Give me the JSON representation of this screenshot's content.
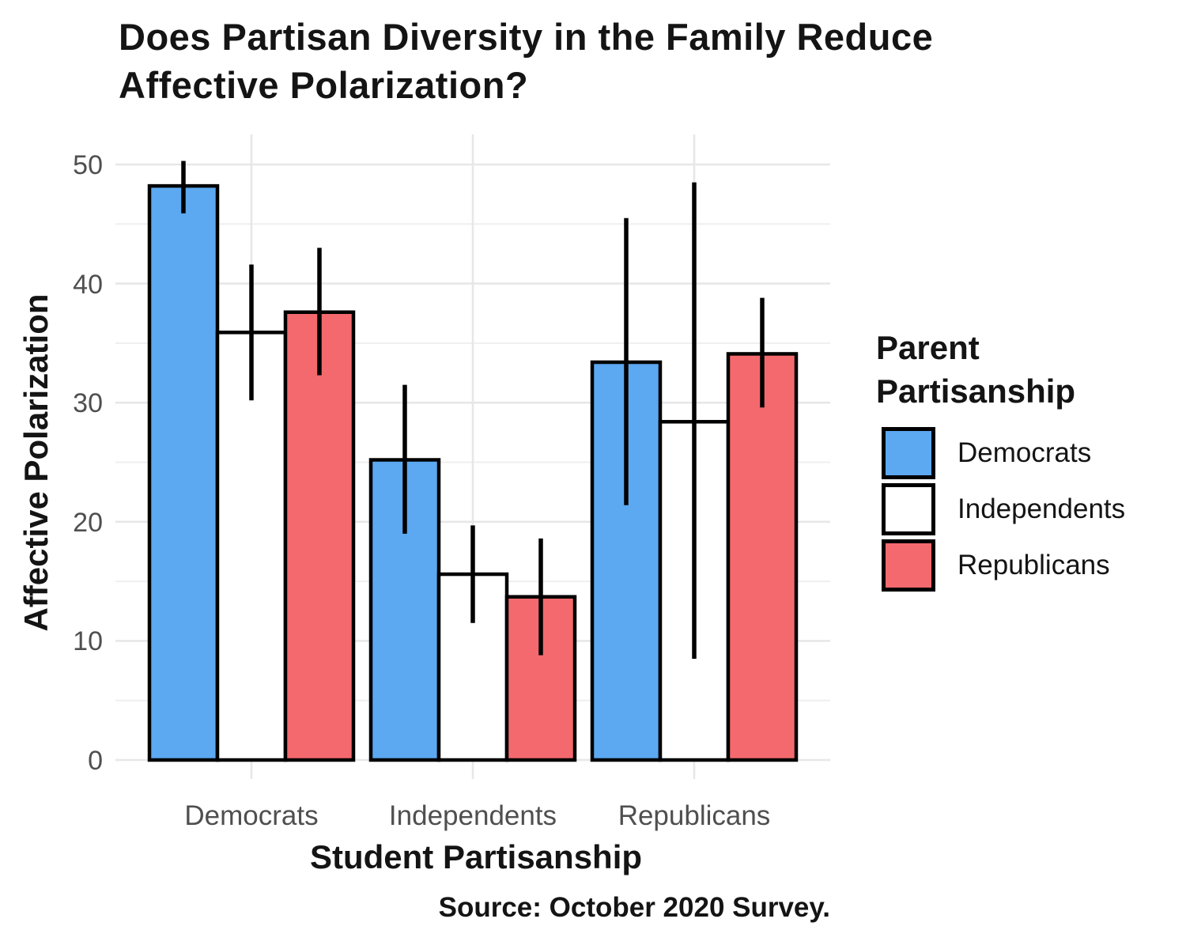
{
  "title_lines": {
    "0": "Does Partisan Diversity in the Family Reduce",
    "1": "Affective Polarization?"
  },
  "axes": {
    "y_title": "Affective Polarization",
    "x_title": "Student Partisanship"
  },
  "caption": "Source: October 2020 Survey.",
  "legend": {
    "title_lines": {
      "0": "Parent",
      "1": "Partisanship"
    },
    "items": [
      {
        "label": "Democrats",
        "color": "#5CA8F1"
      },
      {
        "label": "Independents",
        "color": "#FFFFFF"
      },
      {
        "label": "Republicans",
        "color": "#F4696D"
      }
    ]
  },
  "colors": {
    "democrats_blue": "#5CA8F1",
    "independents_white": "#FFFFFF",
    "republicans_red": "#F4696D",
    "bar_outline": "#000000",
    "grid_major": "#e7e7e7",
    "grid_minor": "#efefef",
    "tick_label_gray": "#4f4f4f",
    "text_black": "#141414"
  },
  "chart_data": {
    "type": "bar",
    "title": "Does Partisan Diversity in the Family Reduce Affective Polarization?",
    "xlabel": "Student Partisanship",
    "ylabel": "Affective Polarization",
    "caption": "Source: October 2020 Survey.",
    "ylim": [
      0,
      50
    ],
    "y_major_ticks": [
      0,
      10,
      20,
      30,
      40,
      50
    ],
    "y_minor_gridlines": [
      5,
      15,
      25,
      35,
      45
    ],
    "grid": true,
    "legend_title": "Parent Partisanship",
    "legend_position": "right",
    "categories": [
      "Democrats",
      "Independents",
      "Republicans"
    ],
    "error_bars": true,
    "series": [
      {
        "name": "Democrats",
        "color": "#5CA8F1",
        "values": [
          48.2,
          25.2,
          33.4
        ],
        "ci_low": [
          45.9,
          19.0,
          21.4
        ],
        "ci_high": [
          50.3,
          31.5,
          45.5
        ]
      },
      {
        "name": "Independents",
        "color": "#FFFFFF",
        "values": [
          35.9,
          15.6,
          28.4
        ],
        "ci_low": [
          30.2,
          11.5,
          8.5
        ],
        "ci_high": [
          41.6,
          19.7,
          48.5
        ]
      },
      {
        "name": "Republicans",
        "color": "#F4696D",
        "values": [
          37.6,
          13.7,
          34.1
        ],
        "ci_low": [
          32.3,
          8.8,
          29.6
        ],
        "ci_high": [
          43.0,
          18.6,
          38.8
        ]
      }
    ]
  }
}
